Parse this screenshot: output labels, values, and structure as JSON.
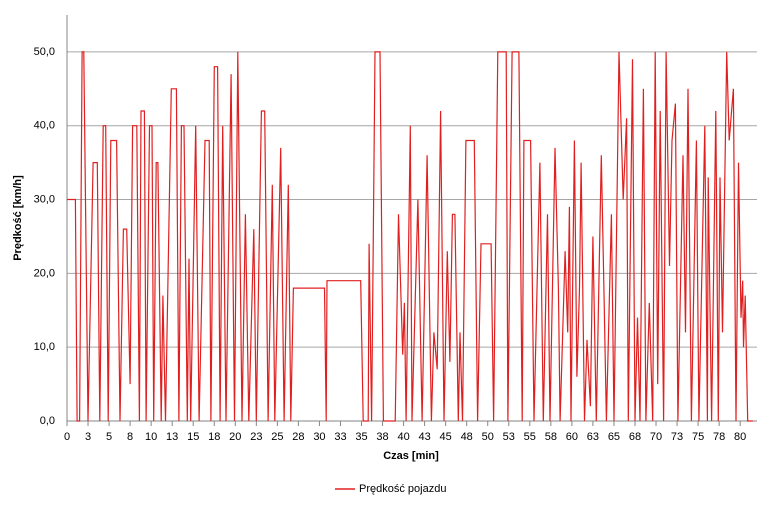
{
  "chart_data": {
    "type": "line",
    "x_label": "Czas [min]",
    "y_label": "Prędkość [km/h]",
    "xlim": [
      0,
      82
    ],
    "ylim": [
      0,
      55
    ],
    "xticks": [
      0,
      {
        "value": 2.5,
        "label": "3"
      },
      5,
      {
        "value": 7.5,
        "label": "8"
      },
      10,
      {
        "value": 12.5,
        "label": "13"
      },
      15,
      {
        "value": 17.5,
        "label": "18"
      },
      20,
      {
        "value": 22.5,
        "label": "23"
      },
      25,
      {
        "value": 27.5,
        "label": "28"
      },
      30,
      {
        "value": 32.5,
        "label": "33"
      },
      35,
      {
        "value": 37.5,
        "label": "38"
      },
      40,
      {
        "value": 42.5,
        "label": "43"
      },
      45,
      {
        "value": 47.5,
        "label": "48"
      },
      50,
      {
        "value": 52.5,
        "label": "53"
      },
      55,
      {
        "value": 57.5,
        "label": "58"
      },
      60,
      {
        "value": 62.5,
        "label": "63"
      },
      65,
      {
        "value": 67.5,
        "label": "68"
      },
      70,
      {
        "value": 72.5,
        "label": "73"
      },
      75,
      {
        "value": 77.5,
        "label": "78"
      },
      80
    ],
    "yticks": [
      {
        "value": 0,
        "label": "0,0"
      },
      {
        "value": 10,
        "label": "10,0"
      },
      {
        "value": 20,
        "label": "20,0"
      },
      {
        "value": 30,
        "label": "30,0"
      },
      {
        "value": 40,
        "label": "40,0"
      },
      {
        "value": 50,
        "label": "50,0"
      }
    ],
    "grid": true,
    "legend": "bottom",
    "x": [
      0,
      1,
      1.2,
      1.5,
      1.8,
      2,
      2.5,
      3.1,
      3.6,
      3.9,
      4.3,
      4.6,
      4.9,
      5.2,
      5.9,
      6.3,
      6.7,
      7.1,
      7.5,
      7.8,
      8.3,
      8.6,
      8.8,
      9.2,
      9.4,
      9.8,
      10.1,
      10.3,
      10.6,
      10.8,
      11.2,
      11.4,
      11.7,
      12.4,
      13,
      13.3,
      13.6,
      13.9,
      14.3,
      14.5,
      14.7,
      15.3,
      15.7,
      16.4,
      16.9,
      17.1,
      17.5,
      17.9,
      18.2,
      18.5,
      18.9,
      19.5,
      19.9,
      20.3,
      20.8,
      21.2,
      21.6,
      22.2,
      22.5,
      23.1,
      23.5,
      23.9,
      24.4,
      24.7,
      25.4,
      25.8,
      26.3,
      26.6,
      26.9,
      30.6,
      30.8,
      30.9,
      34.9,
      35.2,
      35.8,
      35.9,
      36.2,
      36.6,
      37.2,
      37.6,
      39,
      39.4,
      39.9,
      40.1,
      40.3,
      40.8,
      41,
      41.7,
      42.2,
      42.8,
      43.3,
      43.6,
      44,
      44.4,
      44.8,
      45.2,
      45.5,
      45.8,
      46.1,
      46.5,
      46.7,
      47,
      47.4,
      48.4,
      48.8,
      49.2,
      50.4,
      50.7,
      51.2,
      52.2,
      52.4,
      52.9,
      53.7,
      54.1,
      54.3,
      55.1,
      55.5,
      56.2,
      56.6,
      57.1,
      57.4,
      58,
      58.4,
      58.6,
      59.2,
      59.5,
      59.7,
      59.9,
      60.3,
      60.6,
      60.9,
      61.1,
      61.5,
      61.8,
      62.2,
      62.5,
      62.9,
      63.5,
      63.8,
      64.1,
      64.7,
      65,
      65.6,
      66.1,
      66.5,
      66.7,
      67.2,
      67.5,
      67.8,
      68.1,
      68.5,
      68.8,
      69.2,
      69.6,
      69.9,
      70.2,
      70.5,
      70.9,
      71.2,
      71.6,
      71.9,
      72.3,
      72.6,
      73.2,
      73.5,
      73.8,
      74.2,
      74.8,
      75.1,
      75.8,
      76.1,
      76.2,
      76.6,
      77.1,
      77.4,
      77.6,
      77.9,
      78.4,
      78.7,
      79.2,
      79.5,
      79.8,
      80.1,
      80.3,
      80.4,
      80.6,
      80.9,
      81.5
    ],
    "series": [
      {
        "name": "Prędkość pojazdu",
        "color": "#e02020",
        "values": [
          30,
          30,
          0,
          0,
          50,
          50,
          0,
          35,
          35,
          0,
          40,
          40,
          0,
          38,
          38,
          0,
          26,
          26,
          5,
          40,
          40,
          0,
          42,
          42,
          0,
          40,
          40,
          0,
          35,
          35,
          0,
          17,
          0,
          45,
          45,
          0,
          40,
          40,
          0,
          22,
          0,
          40,
          0,
          38,
          38,
          0,
          48,
          48,
          0,
          40,
          0,
          47,
          0,
          50,
          0,
          28,
          0,
          26,
          0,
          42,
          42,
          0,
          32,
          0,
          37,
          0,
          32,
          0,
          18,
          18,
          0,
          19,
          19,
          0,
          0,
          24,
          0,
          50,
          50,
          0,
          0,
          28,
          9,
          16,
          0,
          40,
          0,
          30,
          0,
          36,
          0,
          12,
          7,
          42,
          0,
          23,
          8,
          28,
          28,
          0,
          12,
          0,
          38,
          38,
          0,
          24,
          24,
          0,
          50,
          50,
          0,
          50,
          50,
          0,
          38,
          38,
          0,
          35,
          0,
          28,
          0,
          37,
          18,
          0,
          23,
          12,
          29,
          0,
          38,
          6,
          18,
          35,
          0,
          11,
          2,
          25,
          0,
          36,
          18,
          0,
          28,
          0,
          50,
          30,
          41,
          0,
          49,
          0,
          14,
          0,
          45,
          0,
          16,
          0,
          50,
          5,
          42,
          0,
          50,
          21,
          38,
          43,
          0,
          36,
          12,
          45,
          0,
          38,
          0,
          40,
          0,
          33,
          0,
          42,
          0,
          33,
          12,
          50,
          38,
          45,
          0,
          35,
          14,
          19,
          10,
          17,
          0,
          0
        ]
      }
    ]
  }
}
